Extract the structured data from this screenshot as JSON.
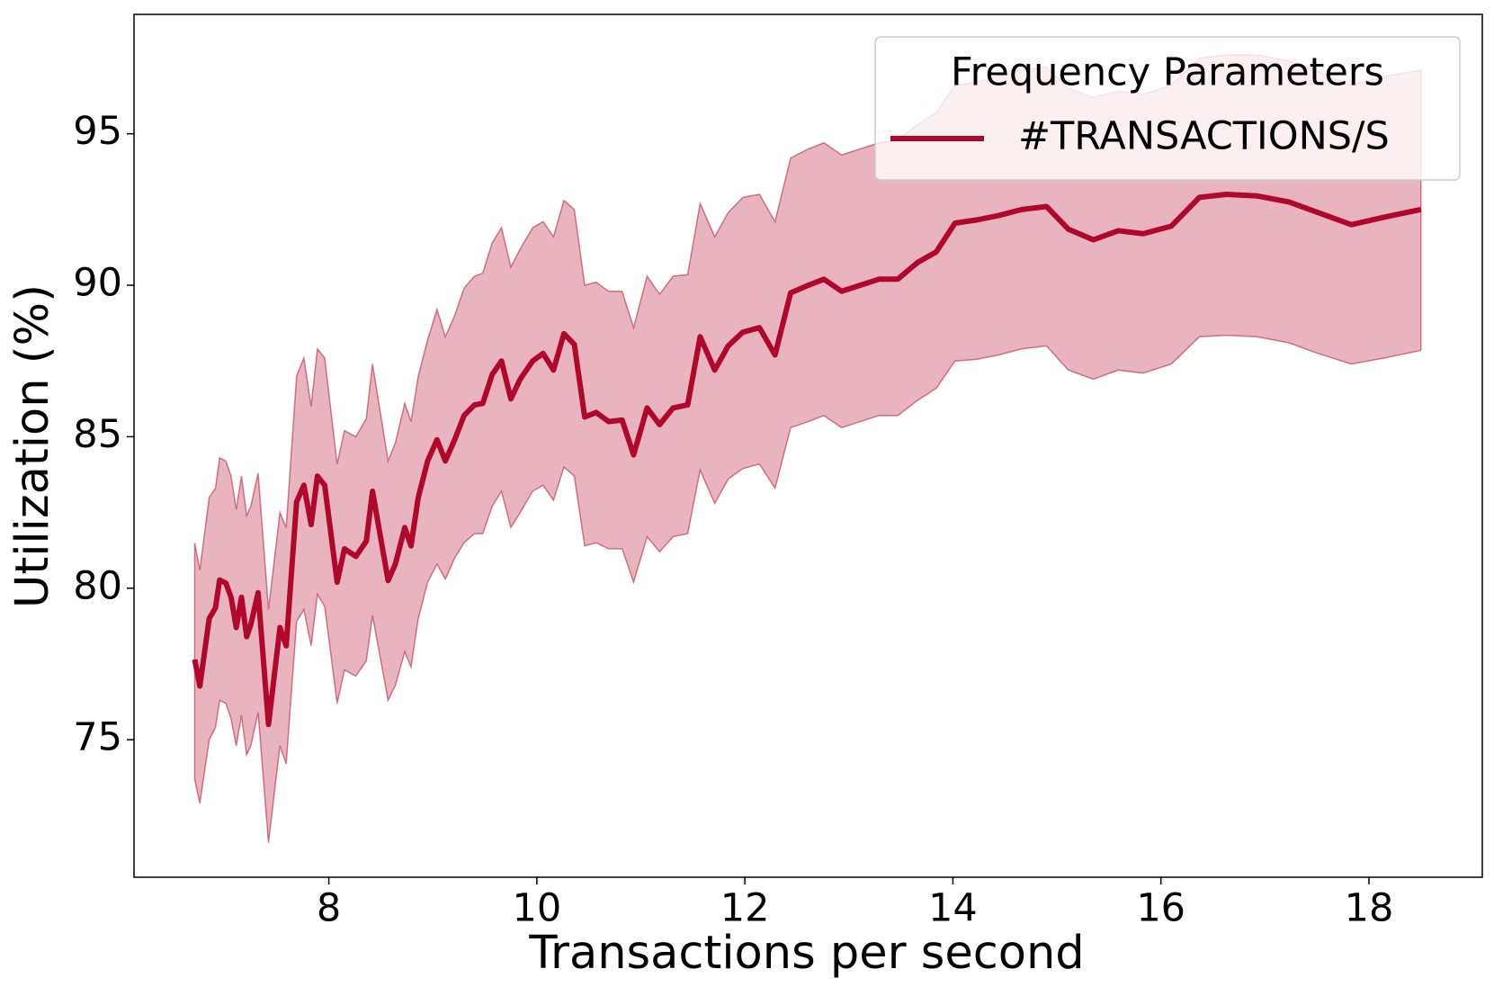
{
  "chart_data": {
    "type": "line",
    "xlabel": "Transactions per second",
    "ylabel": "Utilization (%)",
    "x": [
      6.71,
      6.76,
      6.85,
      6.91,
      6.95,
      7.01,
      7.06,
      7.11,
      7.16,
      7.21,
      7.25,
      7.32,
      7.42,
      7.53,
      7.59,
      7.69,
      7.76,
      7.83,
      7.89,
      7.96,
      8.08,
      8.15,
      8.26,
      8.36,
      8.42,
      8.57,
      8.64,
      8.73,
      8.79,
      8.86,
      8.95,
      9.04,
      9.12,
      9.21,
      9.3,
      9.4,
      9.48,
      9.57,
      9.66,
      9.75,
      9.84,
      9.96,
      10.06,
      10.16,
      10.26,
      10.36,
      10.46,
      10.57,
      10.69,
      10.82,
      10.93,
      11.06,
      11.18,
      11.31,
      11.45,
      11.57,
      11.71,
      11.84,
      11.98,
      12.14,
      12.29,
      12.44,
      12.61,
      12.76,
      12.93,
      13.11,
      13.29,
      13.47,
      13.66,
      13.84,
      14.02,
      14.22,
      14.44,
      14.66,
      14.9,
      15.11,
      15.35,
      15.59,
      15.83,
      16.1,
      16.37,
      16.63,
      16.92,
      17.23,
      17.51,
      17.83,
      18.15,
      18.5
    ],
    "series": [
      {
        "name": "#TRANSACTIONS/S",
        "color": "#b0072b",
        "band_opacity": 0.3,
        "values": [
          77.65,
          76.77,
          79.0,
          79.35,
          80.27,
          80.17,
          79.7,
          78.7,
          79.7,
          78.4,
          78.8,
          79.85,
          75.5,
          78.7,
          78.1,
          82.85,
          83.4,
          82.1,
          83.7,
          83.4,
          80.2,
          81.3,
          81.05,
          81.55,
          83.2,
          80.25,
          80.8,
          82.0,
          81.4,
          83.0,
          84.2,
          84.9,
          84.2,
          84.9,
          85.7,
          86.05,
          86.1,
          87.05,
          87.5,
          86.25,
          86.9,
          87.5,
          87.75,
          87.2,
          88.4,
          88.05,
          85.65,
          85.8,
          85.5,
          85.55,
          84.4,
          85.95,
          85.4,
          85.95,
          86.05,
          88.3,
          87.2,
          88.0,
          88.45,
          88.6,
          87.7,
          89.75,
          90.0,
          90.2,
          89.8,
          90.0,
          90.2,
          90.2,
          90.75,
          91.1,
          92.05,
          92.15,
          92.3,
          92.5,
          92.6,
          91.85,
          91.5,
          91.8,
          91.7,
          91.95,
          92.9,
          93.0,
          92.95,
          92.75,
          92.4,
          92.0,
          92.25,
          92.5
        ],
        "lower": [
          73.7,
          72.9,
          75.0,
          75.4,
          76.3,
          76.2,
          75.7,
          74.8,
          75.8,
          74.5,
          74.8,
          75.9,
          71.6,
          74.8,
          74.2,
          78.9,
          79.3,
          78.1,
          79.8,
          79.4,
          76.2,
          77.3,
          77.1,
          77.6,
          79.1,
          76.3,
          76.8,
          77.9,
          77.4,
          79.0,
          80.2,
          80.8,
          80.3,
          81.0,
          81.5,
          81.8,
          81.8,
          82.7,
          83.2,
          82.0,
          82.5,
          83.2,
          83.4,
          82.9,
          84.0,
          83.7,
          81.4,
          81.5,
          81.3,
          81.3,
          80.2,
          81.7,
          81.2,
          81.7,
          81.8,
          83.9,
          82.8,
          83.6,
          83.95,
          84.1,
          83.3,
          85.3,
          85.5,
          85.7,
          85.3,
          85.5,
          85.7,
          85.7,
          86.2,
          86.6,
          87.5,
          87.55,
          87.7,
          87.9,
          88.0,
          87.2,
          86.9,
          87.2,
          87.1,
          87.4,
          88.3,
          88.35,
          88.3,
          88.1,
          87.75,
          87.4,
          87.6,
          87.85
        ],
        "upper": [
          81.5,
          80.6,
          83.0,
          83.3,
          84.3,
          84.2,
          83.7,
          82.6,
          83.7,
          82.4,
          82.7,
          83.8,
          79.3,
          82.5,
          82.0,
          87.0,
          87.6,
          86.0,
          87.9,
          87.6,
          84.1,
          85.2,
          85.0,
          85.6,
          87.4,
          84.2,
          84.8,
          86.1,
          85.5,
          87.0,
          88.2,
          89.2,
          88.3,
          89.0,
          89.9,
          90.3,
          90.4,
          91.4,
          91.9,
          90.6,
          91.2,
          91.9,
          92.1,
          91.6,
          92.8,
          92.5,
          90.0,
          90.1,
          89.8,
          89.8,
          88.6,
          90.3,
          89.7,
          90.3,
          90.35,
          92.7,
          91.6,
          92.4,
          92.9,
          93.0,
          92.1,
          94.2,
          94.5,
          94.7,
          94.3,
          94.5,
          94.7,
          94.8,
          95.3,
          95.7,
          96.6,
          96.7,
          96.9,
          97.1,
          97.2,
          96.5,
          96.2,
          96.4,
          96.3,
          96.6,
          97.5,
          97.6,
          97.6,
          97.4,
          97.05,
          96.6,
          96.9,
          97.1
        ]
      }
    ],
    "xlim": [
      6.127,
      19.09
    ],
    "ylim": [
      70.46,
      98.94
    ],
    "xticks": [
      8,
      10,
      12,
      14,
      16,
      18
    ],
    "yticks": [
      75,
      80,
      85,
      90,
      95
    ],
    "legend": {
      "title": "Frequency Parameters",
      "loc": "upper right"
    }
  }
}
